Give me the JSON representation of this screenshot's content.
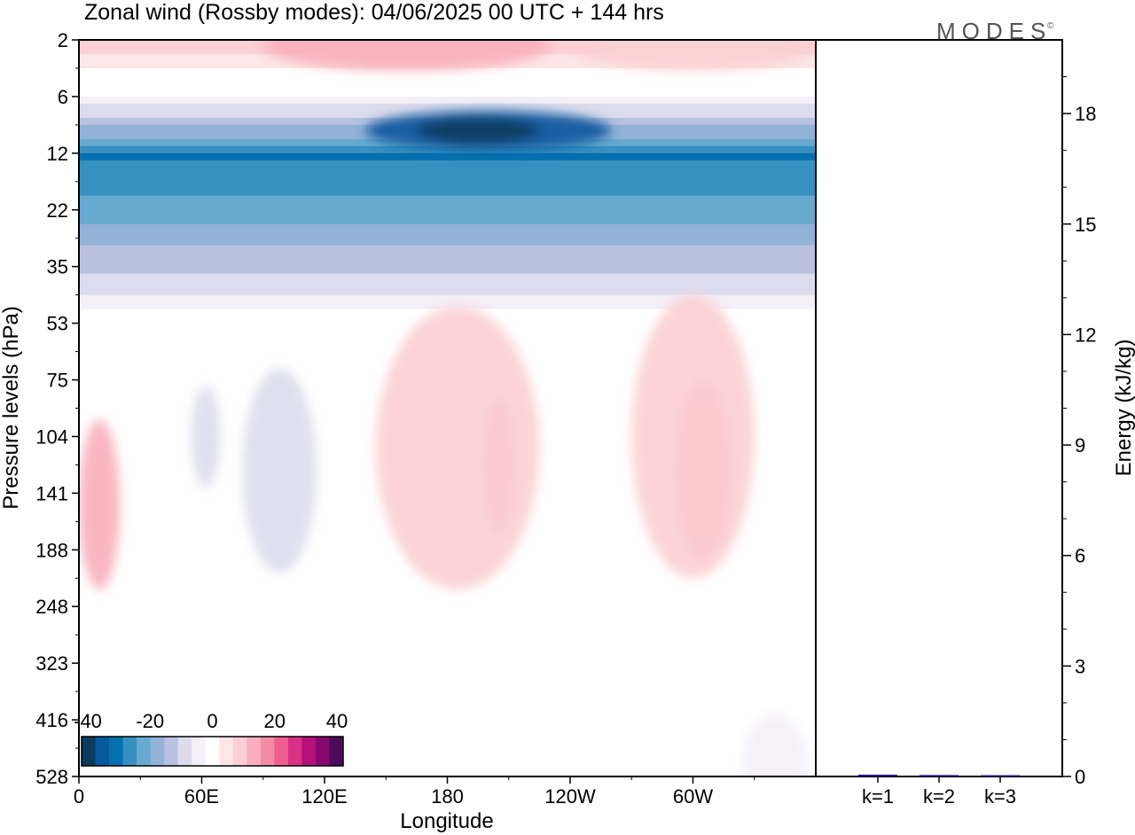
{
  "chart_data": {
    "type": "heatmap",
    "title": "Zonal wind (Rossby modes):  04/06/2025  00 UTC  + 144 hrs",
    "brand": "MODES",
    "brand_mark": "©",
    "xlabel": "Longitude",
    "ylabel": "Pressure levels (hPa)",
    "x_ticks": [
      "0",
      "60E",
      "120E",
      "180",
      "120W",
      "60W"
    ],
    "y_levels": [
      "2",
      "6",
      "12",
      "22",
      "35",
      "53",
      "75",
      "104",
      "141",
      "188",
      "248",
      "323",
      "416",
      "528"
    ],
    "colorbar": {
      "tick_labels": [
        "-40",
        "-20",
        "0",
        "20",
        "40"
      ],
      "colors": [
        "#0b3c5d",
        "#08589e",
        "#0570b0",
        "#3690c0",
        "#67a9cf",
        "#92b2d8",
        "#b8c2e0",
        "#dcdcee",
        "#f4f0f8",
        "#ffffff",
        "#fde6e6",
        "#fcd0d4",
        "#f9b0bc",
        "#f58aa4",
        "#ef5f92",
        "#d93186",
        "#b5117a",
        "#86086f",
        "#4d0a5a"
      ]
    },
    "zonal_profile_u": [
      {
        "level": "2",
        "u": 7
      },
      {
        "level": "6",
        "u": -3
      },
      {
        "level": "12",
        "u": -30
      },
      {
        "level": "22",
        "u": -22
      },
      {
        "level": "35",
        "u": -10
      },
      {
        "level": "53",
        "u": 1
      },
      {
        "level": "75",
        "u": 2
      },
      {
        "level": "104",
        "u": 1
      },
      {
        "level": "141",
        "u": 1
      },
      {
        "level": "188",
        "u": 2
      },
      {
        "level": "248",
        "u": 1
      },
      {
        "level": "323",
        "u": 1
      },
      {
        "level": "416",
        "u": 1
      },
      {
        "level": "528",
        "u": 0
      }
    ],
    "energy_panel": {
      "ylabel": "Energy (kJ/kg)",
      "y_ticks": [
        0,
        3,
        6,
        9,
        12,
        15,
        18
      ],
      "ylim": [
        0,
        20
      ],
      "categories": [
        "k=1",
        "k=2",
        "k=3"
      ],
      "values": [
        0.05,
        0.04,
        0.02
      ],
      "bar_color": "#1a1a8c"
    }
  }
}
